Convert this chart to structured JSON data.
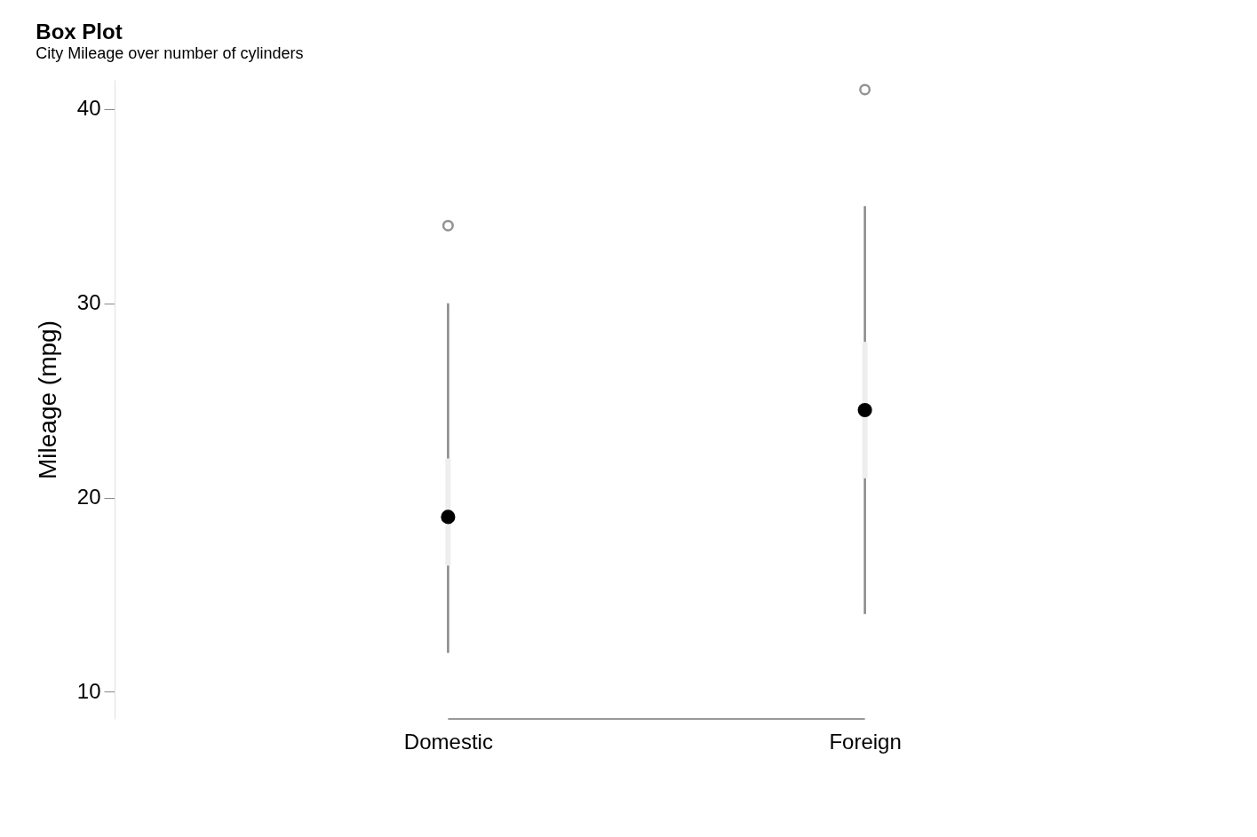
{
  "chart_data": {
    "type": "box",
    "title": "Box Plot",
    "subtitle": "City Mileage over number of cylinders",
    "ylabel": "Mileage (mpg)",
    "categories": [
      "Domestic",
      "Foreign"
    ],
    "boxes": [
      {
        "low": 12,
        "q1": 16.5,
        "median": 19,
        "q3": 22,
        "high": 30,
        "outliers": [
          34
        ]
      },
      {
        "low": 14,
        "q1": 21,
        "median": 24.5,
        "q3": 28,
        "high": 35,
        "outliers": [
          41
        ]
      }
    ],
    "ylim": [
      8.6,
      41.5
    ],
    "yticks": [
      10,
      20,
      30,
      40
    ],
    "grid": false
  }
}
